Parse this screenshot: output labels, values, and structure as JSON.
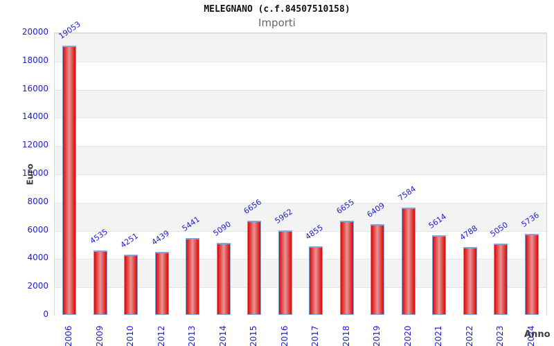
{
  "chart_data": {
    "type": "bar",
    "title": "MELEGNANO (c.f.84507510158)",
    "subtitle": "Importi",
    "xlabel": "Anno",
    "ylabel": "Euro",
    "categories": [
      "2006",
      "2009",
      "2010",
      "2012",
      "2013",
      "2014",
      "2015",
      "2016",
      "2017",
      "2018",
      "2019",
      "2020",
      "2021",
      "2022",
      "2023",
      "2024"
    ],
    "values": [
      19053,
      4535,
      4251,
      4439,
      5441,
      5090,
      6656,
      5962,
      4855,
      6655,
      6409,
      7584,
      5614,
      4788,
      5050,
      5736
    ],
    "ylim": [
      0,
      20000
    ],
    "ytick_step": 2000,
    "grid": "horizontal-bands-alternating",
    "legend": "none",
    "colors": {
      "bar_fill_edge": "#dc0606",
      "bar_fill_mid": "#e89494",
      "bar_border": "#7aa7dc",
      "tick_label": "#1d1dce",
      "value_label": "#1d1dce",
      "axis_title": "#3d3d3d",
      "band_gray": "#f3f3f3",
      "band_white": "#ffffff",
      "band_line": "#e4e4e4",
      "plot_border": "#d6d6d6",
      "title": "#111111",
      "subtitle": "#666666"
    }
  }
}
